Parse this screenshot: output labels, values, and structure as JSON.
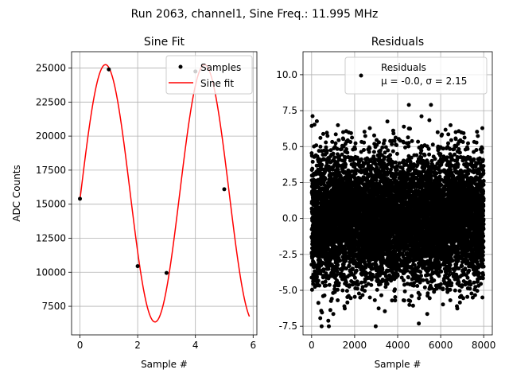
{
  "figure": {
    "suptitle": "Run 2063, channel1, Sine Freq.: 11.995 MHz"
  },
  "chart_data": [
    {
      "type": "line",
      "title": "Sine Fit",
      "xlabel": "Sample #",
      "ylabel": "ADC Counts",
      "xlim": [
        -0.29,
        6.13
      ],
      "ylim": [
        5400,
        26200
      ],
      "xticks": [
        0,
        2,
        4,
        6
      ],
      "yticks": [
        7500,
        10000,
        12500,
        15000,
        17500,
        20000,
        22500,
        25000
      ],
      "grid": true,
      "legend": {
        "placement": "top-right",
        "entries": [
          "Samples",
          "Sine fit"
        ]
      },
      "series": [
        {
          "name": "Samples",
          "kind": "scatter",
          "color": "#000000",
          "x": [
            0,
            1,
            2,
            3,
            4,
            5
          ],
          "y": [
            15400,
            24900,
            10450,
            9950,
            24750,
            16100
          ]
        },
        {
          "name": "Sine fit",
          "kind": "line",
          "color": "#ff0000",
          "amplitude": 9450,
          "offset": 15800,
          "period": 3.43,
          "phase_x": 0.0,
          "phase_rad": -0.05,
          "x_range": [
            0,
            5.87
          ]
        }
      ]
    },
    {
      "type": "scatter",
      "title": "Residuals",
      "xlabel": "Sample #",
      "ylabel": "",
      "xlim": [
        -400,
        8400
      ],
      "ylim": [
        -8.1,
        11.6
      ],
      "xticks": [
        0,
        2000,
        4000,
        6000,
        8000
      ],
      "yticks": [
        -7.5,
        -5.0,
        -2.5,
        0.0,
        2.5,
        5.0,
        7.5,
        10.0
      ],
      "grid": true,
      "legend": {
        "placement": "top-right",
        "entries": [
          "Residuals",
          "μ = -0.0, σ = 2.15"
        ]
      },
      "series": [
        {
          "name": "Residuals",
          "color": "#000000",
          "n_points": 8000,
          "mean": -0.0,
          "sigma": 2.15
        }
      ]
    }
  ]
}
